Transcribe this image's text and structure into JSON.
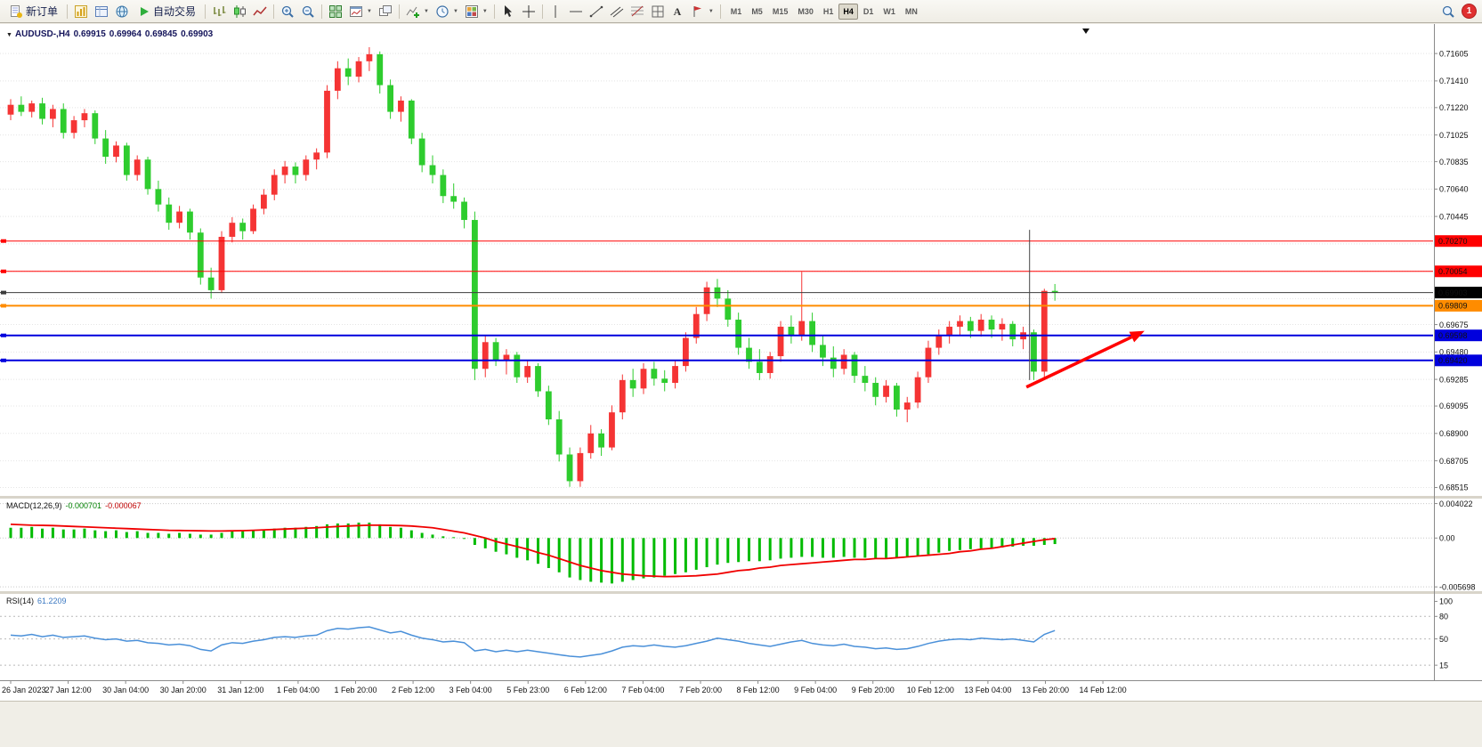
{
  "toolbar": {
    "new_order_label": "新订单",
    "auto_trading_label": "自动交易",
    "timeframes": [
      "M1",
      "M5",
      "M15",
      "M30",
      "H1",
      "H4",
      "D1",
      "W1",
      "MN"
    ],
    "active_timeframe": "H4",
    "notification_count": "1"
  },
  "chart_header": {
    "symbol": "AUDUSD-,H4",
    "open": "0.69915",
    "high": "0.69964",
    "low": "0.69845",
    "close": "0.69903"
  },
  "colors": {
    "up_candle": "#f53434",
    "down_candle": "#2ecc2e",
    "macd_hist": "#00bb00",
    "macd_signal": "#f00000",
    "rsi_line": "#4a90d9",
    "arrow": "#ff0000"
  },
  "chart_data": {
    "type": "candlestick",
    "symbol": "AUDUSD",
    "timeframe": "H4",
    "price_range": {
      "view_max": 0.71815,
      "view_min": 0.68455
    },
    "price_axis": {
      "ticks": [
        "0.71605",
        "0.71410",
        "0.71220",
        "0.71025",
        "0.70835",
        "0.70640",
        "0.70445",
        "0.69675",
        "0.69480",
        "0.69285",
        "0.69095",
        "0.68900",
        "0.68705",
        "0.68515"
      ],
      "hidden_grid": [
        0.7025,
        0.70055,
        0.6986
      ]
    },
    "lines": [
      {
        "name": "resistance-line-1",
        "price": 0.7027,
        "label": "0.70270",
        "color": "#ff0000",
        "width": 1,
        "badge": "#ff0000"
      },
      {
        "name": "resistance-line-2",
        "price": 0.70054,
        "label": "0.70054",
        "color": "#ff0000",
        "width": 1,
        "badge": "#ff0000"
      },
      {
        "name": "current-price-line",
        "price": 0.69903,
        "label": "0.69903",
        "color": "#3c3c3c",
        "width": 1,
        "badge": "#000000"
      },
      {
        "name": "pivot-line",
        "price": 0.69809,
        "label": "0.69809",
        "color": "#ff8c00",
        "width": 2,
        "badge": "#ff8c00"
      },
      {
        "name": "support-line-1",
        "price": 0.69598,
        "label": "0.69598",
        "color": "#0000dd",
        "width": 2,
        "badge": "#0000dd"
      },
      {
        "name": "support-line-2",
        "price": 0.6942,
        "label": "0.69420",
        "color": "#0000dd",
        "width": 2,
        "badge": "#0000dd"
      }
    ],
    "vline": {
      "index": 96.6,
      "from": 0.7035,
      "to": 0.6928
    },
    "arrow": {
      "from_index": 96.3,
      "from_price": 0.6923,
      "to_index": 107.5,
      "to_price": 0.6963
    },
    "label_step": 5.45,
    "x_labels": [
      "26 Jan 2023",
      "27 Jan 12:00",
      "30 Jan 04:00",
      "30 Jan 20:00",
      "31 Jan 12:00",
      "1 Feb 04:00",
      "1 Feb 20:00",
      "2 Feb 12:00",
      "3 Feb 04:00",
      "5 Feb 23:00",
      "6 Feb 12:00",
      "7 Feb 04:00",
      "7 Feb 20:00",
      "8 Feb 12:00",
      "9 Feb 04:00",
      "9 Feb 20:00",
      "10 Feb 12:00",
      "13 Feb 04:00",
      "13 Feb 20:00",
      "14 Feb 12:00"
    ],
    "candles": [
      [
        0.7117,
        0.7128,
        0.7113,
        0.7124
      ],
      [
        0.7124,
        0.713,
        0.7116,
        0.7119
      ],
      [
        0.7119,
        0.7127,
        0.7115,
        0.7125
      ],
      [
        0.7125,
        0.7129,
        0.711,
        0.7114
      ],
      [
        0.7114,
        0.7124,
        0.7108,
        0.7121
      ],
      [
        0.7121,
        0.7125,
        0.71,
        0.7104
      ],
      [
        0.7104,
        0.7116,
        0.71,
        0.7113
      ],
      [
        0.7113,
        0.7121,
        0.7108,
        0.7118
      ],
      [
        0.7118,
        0.712,
        0.7096,
        0.71
      ],
      [
        0.71,
        0.7106,
        0.7082,
        0.7087
      ],
      [
        0.7087,
        0.7098,
        0.7083,
        0.7095
      ],
      [
        0.7095,
        0.7097,
        0.707,
        0.7074
      ],
      [
        0.7074,
        0.7088,
        0.707,
        0.7085
      ],
      [
        0.7085,
        0.7087,
        0.706,
        0.7064
      ],
      [
        0.7064,
        0.707,
        0.7048,
        0.7053
      ],
      [
        0.7053,
        0.7058,
        0.7035,
        0.704
      ],
      [
        0.704,
        0.7052,
        0.7036,
        0.7048
      ],
      [
        0.7048,
        0.705,
        0.7028,
        0.7033
      ],
      [
        0.7033,
        0.7036,
        0.6996,
        0.7001
      ],
      [
        0.7001,
        0.7008,
        0.6986,
        0.6992
      ],
      [
        0.6992,
        0.7034,
        0.699,
        0.703
      ],
      [
        0.703,
        0.7044,
        0.7026,
        0.704
      ],
      [
        0.704,
        0.7043,
        0.7028,
        0.7034
      ],
      [
        0.7034,
        0.7053,
        0.7032,
        0.705
      ],
      [
        0.705,
        0.7064,
        0.7046,
        0.706
      ],
      [
        0.706,
        0.7078,
        0.7056,
        0.7074
      ],
      [
        0.7074,
        0.7084,
        0.7068,
        0.708
      ],
      [
        0.708,
        0.7083,
        0.7068,
        0.7074
      ],
      [
        0.7074,
        0.7088,
        0.707,
        0.7085
      ],
      [
        0.7085,
        0.7093,
        0.7078,
        0.709
      ],
      [
        0.709,
        0.7138,
        0.7086,
        0.7134
      ],
      [
        0.7134,
        0.7155,
        0.7128,
        0.715
      ],
      [
        0.715,
        0.7157,
        0.7138,
        0.7144
      ],
      [
        0.7144,
        0.7158,
        0.714,
        0.7155
      ],
      [
        0.7155,
        0.7165,
        0.7148,
        0.716
      ],
      [
        0.716,
        0.7162,
        0.7132,
        0.7138
      ],
      [
        0.7138,
        0.7142,
        0.7114,
        0.7119
      ],
      [
        0.7119,
        0.713,
        0.7112,
        0.7127
      ],
      [
        0.7127,
        0.7128,
        0.7096,
        0.71
      ],
      [
        0.71,
        0.7104,
        0.7076,
        0.7081
      ],
      [
        0.7081,
        0.7088,
        0.7068,
        0.7074
      ],
      [
        0.7074,
        0.7078,
        0.7054,
        0.7059
      ],
      [
        0.7059,
        0.7068,
        0.705,
        0.7055
      ],
      [
        0.7055,
        0.7058,
        0.7036,
        0.7042
      ],
      [
        0.7042,
        0.7048,
        0.6928,
        0.6936
      ],
      [
        0.6936,
        0.696,
        0.693,
        0.6955
      ],
      [
        0.6955,
        0.6958,
        0.6938,
        0.6942
      ],
      [
        0.6942,
        0.695,
        0.6932,
        0.6946
      ],
      [
        0.6946,
        0.6948,
        0.6926,
        0.693
      ],
      [
        0.693,
        0.6942,
        0.6926,
        0.6938
      ],
      [
        0.6938,
        0.694,
        0.6916,
        0.692
      ],
      [
        0.692,
        0.6924,
        0.6896,
        0.69
      ],
      [
        0.69,
        0.6906,
        0.687,
        0.6875
      ],
      [
        0.6875,
        0.688,
        0.6852,
        0.6856
      ],
      [
        0.6856,
        0.688,
        0.6852,
        0.6876
      ],
      [
        0.6876,
        0.6896,
        0.6872,
        0.689
      ],
      [
        0.689,
        0.6893,
        0.6874,
        0.688
      ],
      [
        0.688,
        0.691,
        0.6878,
        0.6905
      ],
      [
        0.6905,
        0.6932,
        0.69,
        0.6928
      ],
      [
        0.6928,
        0.6936,
        0.6916,
        0.6922
      ],
      [
        0.6922,
        0.694,
        0.6918,
        0.6936
      ],
      [
        0.6936,
        0.6941,
        0.6924,
        0.6929
      ],
      [
        0.6929,
        0.6935,
        0.692,
        0.6926
      ],
      [
        0.6926,
        0.6942,
        0.6922,
        0.6938
      ],
      [
        0.6938,
        0.6962,
        0.6934,
        0.6958
      ],
      [
        0.6958,
        0.698,
        0.6954,
        0.6975
      ],
      [
        0.6975,
        0.6998,
        0.697,
        0.6994
      ],
      [
        0.6994,
        0.7,
        0.698,
        0.6986
      ],
      [
        0.6986,
        0.6992,
        0.6966,
        0.6971
      ],
      [
        0.6971,
        0.6976,
        0.6946,
        0.6951
      ],
      [
        0.6951,
        0.6958,
        0.6936,
        0.6941
      ],
      [
        0.6941,
        0.695,
        0.6928,
        0.6933
      ],
      [
        0.6933,
        0.6948,
        0.6929,
        0.6945
      ],
      [
        0.6945,
        0.697,
        0.6941,
        0.6966
      ],
      [
        0.6966,
        0.6974,
        0.6954,
        0.696
      ],
      [
        0.696,
        0.7005,
        0.6956,
        0.697
      ],
      [
        0.697,
        0.6976,
        0.6948,
        0.6953
      ],
      [
        0.6953,
        0.696,
        0.6938,
        0.6944
      ],
      [
        0.6944,
        0.6952,
        0.693,
        0.6936
      ],
      [
        0.6936,
        0.695,
        0.6932,
        0.6946
      ],
      [
        0.6946,
        0.6948,
        0.6926,
        0.6931
      ],
      [
        0.6931,
        0.6938,
        0.692,
        0.6926
      ],
      [
        0.6926,
        0.693,
        0.691,
        0.6916
      ],
      [
        0.6916,
        0.6928,
        0.6912,
        0.6924
      ],
      [
        0.6924,
        0.6926,
        0.6902,
        0.6907
      ],
      [
        0.6907,
        0.6916,
        0.6898,
        0.6912
      ],
      [
        0.6912,
        0.6934,
        0.6908,
        0.693
      ],
      [
        0.693,
        0.6956,
        0.6926,
        0.6951
      ],
      [
        0.6951,
        0.6964,
        0.6946,
        0.696
      ],
      [
        0.696,
        0.697,
        0.6954,
        0.6966
      ],
      [
        0.6966,
        0.6974,
        0.696,
        0.697
      ],
      [
        0.697,
        0.6973,
        0.6958,
        0.6963
      ],
      [
        0.6963,
        0.6975,
        0.6959,
        0.6971
      ],
      [
        0.6971,
        0.6974,
        0.6958,
        0.6964
      ],
      [
        0.6964,
        0.6972,
        0.6956,
        0.6968
      ],
      [
        0.6968,
        0.697,
        0.6952,
        0.6957
      ],
      [
        0.6957,
        0.6966,
        0.695,
        0.6962
      ],
      [
        0.6962,
        0.6964,
        0.6928,
        0.6934
      ],
      [
        0.6934,
        0.6993,
        0.693,
        0.69915
      ],
      [
        0.69915,
        0.69964,
        0.69845,
        0.69903
      ]
    ],
    "macd": {
      "label": "MACD(12,26,9)",
      "main_value": "-0.000701",
      "signal_value": "-0.000067",
      "view_max": 0.0046,
      "view_min": -0.0062,
      "grid": [
        0.004022,
        0,
        -0.005698
      ],
      "axis_labels": [
        "0.004022",
        "0.00",
        "-0.005698"
      ],
      "histogram": [
        0.0012,
        0.0012,
        0.0013,
        0.0011,
        0.0012,
        0.001,
        0.001,
        0.0011,
        0.0009,
        0.0008,
        0.0009,
        0.0007,
        0.0008,
        0.0006,
        0.0006,
        0.0005,
        0.0006,
        0.0005,
        0.0004,
        0.0004,
        0.0006,
        0.0008,
        0.0008,
        0.0009,
        0.001,
        0.0011,
        0.0012,
        0.0012,
        0.0013,
        0.0014,
        0.0016,
        0.0017,
        0.0017,
        0.0018,
        0.0018,
        0.0016,
        0.0013,
        0.0012,
        0.0009,
        0.0006,
        0.0004,
        0.0002,
        0.0001,
        -0.0001,
        -0.0008,
        -0.0012,
        -0.0016,
        -0.0019,
        -0.0023,
        -0.0026,
        -0.003,
        -0.0035,
        -0.004,
        -0.0046,
        -0.0049,
        -0.0051,
        -0.0052,
        -0.0053,
        -0.0051,
        -0.0049,
        -0.0047,
        -0.0046,
        -0.0044,
        -0.0042,
        -0.004,
        -0.0037,
        -0.0034,
        -0.0031,
        -0.0029,
        -0.0028,
        -0.0027,
        -0.0027,
        -0.0026,
        -0.0024,
        -0.0023,
        -0.0022,
        -0.0022,
        -0.0023,
        -0.0023,
        -0.0022,
        -0.0023,
        -0.0023,
        -0.0024,
        -0.0023,
        -0.0023,
        -0.0022,
        -0.0021,
        -0.0019,
        -0.0017,
        -0.0015,
        -0.0014,
        -0.0013,
        -0.0012,
        -0.0012,
        -0.0011,
        -0.001,
        -0.0009,
        -0.0009,
        -0.0008,
        -0.000701
      ],
      "signal": [
        0.0016,
        0.00155,
        0.0015,
        0.00148,
        0.00145,
        0.0014,
        0.00135,
        0.0013,
        0.00125,
        0.0012,
        0.00115,
        0.0011,
        0.00105,
        0.001,
        0.00095,
        0.0009,
        0.00088,
        0.00086,
        0.00084,
        0.00082,
        0.00082,
        0.00084,
        0.00086,
        0.0009,
        0.00095,
        0.001,
        0.00105,
        0.0011,
        0.00115,
        0.0012,
        0.00128,
        0.00135,
        0.0014,
        0.00145,
        0.0015,
        0.0015,
        0.00148,
        0.00145,
        0.0014,
        0.0013,
        0.0012,
        0.001,
        0.0008,
        0.0006,
        0.0003,
        0.0,
        -0.0004,
        -0.0007,
        -0.001,
        -0.0013,
        -0.0017,
        -0.002,
        -0.0024,
        -0.0028,
        -0.0032,
        -0.0035,
        -0.0038,
        -0.004,
        -0.0042,
        -0.0043,
        -0.0044,
        -0.00445,
        -0.0045,
        -0.00448,
        -0.00445,
        -0.0044,
        -0.0043,
        -0.0042,
        -0.004,
        -0.0038,
        -0.0037,
        -0.0035,
        -0.0034,
        -0.0032,
        -0.0031,
        -0.003,
        -0.0029,
        -0.0028,
        -0.0027,
        -0.0026,
        -0.0025,
        -0.0025,
        -0.0024,
        -0.0024,
        -0.0023,
        -0.0022,
        -0.0021,
        -0.002,
        -0.0019,
        -0.0018,
        -0.0016,
        -0.0015,
        -0.0013,
        -0.0012,
        -0.001,
        -0.0008,
        -0.0006,
        -0.0004,
        -0.0002,
        -6.7e-05
      ]
    },
    "rsi": {
      "label": "RSI(14)",
      "value": "61.2209",
      "levels": [
        80,
        50,
        15
      ],
      "axis_values": [
        100,
        80,
        50,
        15
      ],
      "axis_labels": [
        "100",
        "80",
        "50",
        "15"
      ],
      "values": [
        55,
        54,
        56,
        53,
        55,
        52,
        53,
        54,
        51,
        49,
        50,
        47,
        48,
        45,
        44,
        42,
        43,
        41,
        36,
        34,
        42,
        45,
        44,
        47,
        49,
        52,
        53,
        52,
        54,
        55,
        61,
        64,
        63,
        65,
        66,
        62,
        58,
        60,
        55,
        51,
        49,
        46,
        47,
        45,
        34,
        36,
        33,
        35,
        33,
        35,
        33,
        31,
        29,
        27,
        26,
        28,
        30,
        34,
        39,
        41,
        40,
        42,
        40,
        39,
        41,
        44,
        47,
        51,
        49,
        47,
        44,
        42,
        40,
        43,
        46,
        48,
        44,
        42,
        41,
        43,
        40,
        39,
        37,
        38,
        36,
        37,
        40,
        44,
        47,
        49,
        50,
        49,
        51,
        50,
        49,
        50,
        48,
        46,
        56,
        61.2209
      ]
    }
  }
}
